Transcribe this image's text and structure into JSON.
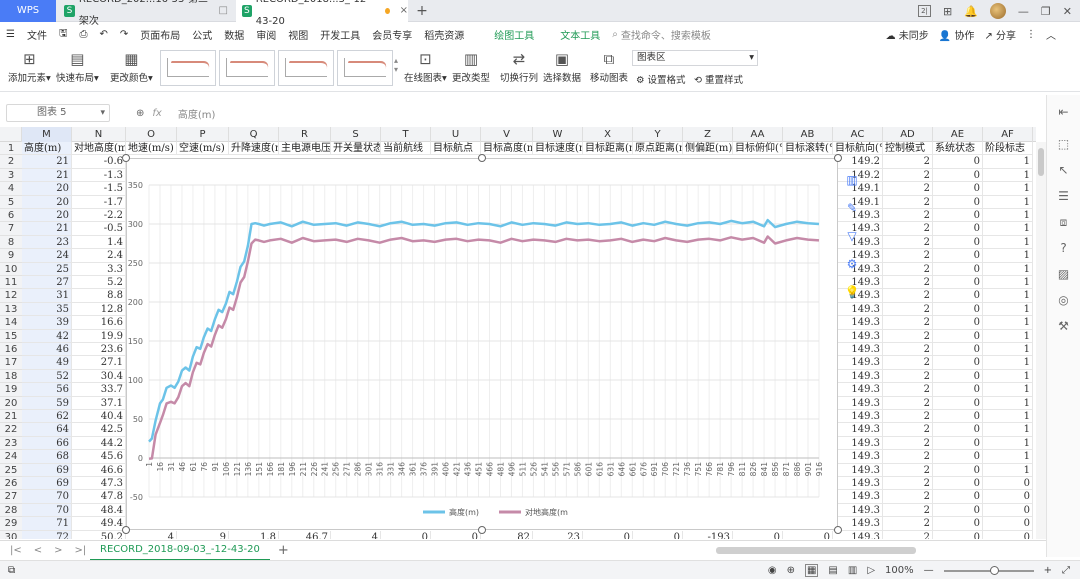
{
  "titlebar": {
    "app_tab": "WPS",
    "tabs": [
      {
        "label": "RECORD_202...16-53-第三架次"
      },
      {
        "label": "RECORD_2018...3_-12-43-20"
      }
    ],
    "new_tab": "+"
  },
  "menu": {
    "file": "文件",
    "items": [
      "页面布局",
      "公式",
      "数据",
      "审阅",
      "视图",
      "开发工具",
      "会员专享",
      "稻壳资源"
    ],
    "context_items": [
      "绘图工具",
      "文本工具"
    ],
    "search_placeholder": "查找命令、搜索模板",
    "right": [
      "未同步",
      "协作",
      "分享"
    ]
  },
  "ribbon": {
    "add_element": "添加元素",
    "quick_layout": "快速布局",
    "change_color": "更改颜色",
    "online_chart": "在线图表",
    "change_type": "更改类型",
    "switch_rowcol": "切换行列",
    "select_data": "选择数据",
    "move_chart": "移动图表",
    "chart_area": "图表区",
    "set_format": "设置格式",
    "reset_style": "重置样式"
  },
  "formula_bar": {
    "name_box": "图表 5",
    "fx": "fx",
    "value": "高度(m)"
  },
  "grid": {
    "columns": [
      "M",
      "N",
      "O",
      "P",
      "Q",
      "R",
      "S",
      "T",
      "U",
      "V",
      "W",
      "X",
      "Y",
      "Z",
      "AA",
      "AB",
      "AC",
      "AD",
      "AE",
      "AF"
    ],
    "header_row": [
      "高度(m)",
      "对地高度(m",
      "地速(m/s)",
      "空速(m/s)",
      "升降速度(m",
      "主电源电压",
      "开关量状态",
      "当前航线",
      "目标航点",
      "目标高度(m",
      "目标速度(m",
      "目标距离(m",
      "原点距离(m",
      "侧偏距(m)",
      "目标俯仰(°",
      "目标滚转(°",
      "目标航向(°",
      "控制模式",
      "系统状态",
      "阶段标志"
    ],
    "rows": [
      {
        "n": "2",
        "M": "21",
        "N": "-0.6",
        "AC": "149.2",
        "AD": "2",
        "AE": "0",
        "AF": "1"
      },
      {
        "n": "3",
        "M": "21",
        "N": "-1.3",
        "AC": "149.2",
        "AD": "2",
        "AE": "0",
        "AF": "1"
      },
      {
        "n": "4",
        "M": "20",
        "N": "-1.5",
        "AC": "149.1",
        "AD": "2",
        "AE": "0",
        "AF": "1"
      },
      {
        "n": "5",
        "M": "20",
        "N": "-1.7",
        "AC": "149.1",
        "AD": "2",
        "AE": "0",
        "AF": "1"
      },
      {
        "n": "6",
        "M": "20",
        "N": "-2.2",
        "AC": "149.3",
        "AD": "2",
        "AE": "0",
        "AF": "1"
      },
      {
        "n": "7",
        "M": "21",
        "N": "-0.5",
        "AC": "149.3",
        "AD": "2",
        "AE": "0",
        "AF": "1"
      },
      {
        "n": "8",
        "M": "23",
        "N": "1.4",
        "AC": "149.3",
        "AD": "2",
        "AE": "0",
        "AF": "1"
      },
      {
        "n": "9",
        "M": "24",
        "N": "2.4",
        "AC": "149.3",
        "AD": "2",
        "AE": "0",
        "AF": "1"
      },
      {
        "n": "10",
        "M": "25",
        "N": "3.3",
        "AC": "149.3",
        "AD": "2",
        "AE": "0",
        "AF": "1"
      },
      {
        "n": "11",
        "M": "27",
        "N": "5.2",
        "AC": "149.3",
        "AD": "2",
        "AE": "0",
        "AF": "1"
      },
      {
        "n": "12",
        "M": "31",
        "N": "8.8",
        "AC": "149.3",
        "AD": "2",
        "AE": "0",
        "AF": "1"
      },
      {
        "n": "13",
        "M": "35",
        "N": "12.8",
        "AC": "149.3",
        "AD": "2",
        "AE": "0",
        "AF": "1"
      },
      {
        "n": "14",
        "M": "39",
        "N": "16.6",
        "AC": "149.3",
        "AD": "2",
        "AE": "0",
        "AF": "1"
      },
      {
        "n": "15",
        "M": "42",
        "N": "19.9",
        "AC": "149.3",
        "AD": "2",
        "AE": "0",
        "AF": "1"
      },
      {
        "n": "16",
        "M": "46",
        "N": "23.6",
        "AC": "149.3",
        "AD": "2",
        "AE": "0",
        "AF": "1"
      },
      {
        "n": "17",
        "M": "49",
        "N": "27.1",
        "AC": "149.3",
        "AD": "2",
        "AE": "0",
        "AF": "1"
      },
      {
        "n": "18",
        "M": "52",
        "N": "30.4",
        "AC": "149.3",
        "AD": "2",
        "AE": "0",
        "AF": "1"
      },
      {
        "n": "19",
        "M": "56",
        "N": "33.7",
        "AC": "149.3",
        "AD": "2",
        "AE": "0",
        "AF": "1"
      },
      {
        "n": "20",
        "M": "59",
        "N": "37.1",
        "AC": "149.3",
        "AD": "2",
        "AE": "0",
        "AF": "1"
      },
      {
        "n": "21",
        "M": "62",
        "N": "40.4",
        "AC": "149.3",
        "AD": "2",
        "AE": "0",
        "AF": "1"
      },
      {
        "n": "22",
        "M": "64",
        "N": "42.5",
        "AC": "149.3",
        "AD": "2",
        "AE": "0",
        "AF": "1"
      },
      {
        "n": "23",
        "M": "66",
        "N": "44.2",
        "AC": "149.3",
        "AD": "2",
        "AE": "0",
        "AF": "1"
      },
      {
        "n": "24",
        "M": "68",
        "N": "45.6",
        "AC": "149.3",
        "AD": "2",
        "AE": "0",
        "AF": "1"
      },
      {
        "n": "25",
        "M": "69",
        "N": "46.6",
        "AC": "149.3",
        "AD": "2",
        "AE": "0",
        "AF": "1"
      },
      {
        "n": "26",
        "M": "69",
        "N": "47.3",
        "AC": "149.3",
        "AD": "2",
        "AE": "0",
        "AF": "0"
      },
      {
        "n": "27",
        "M": "70",
        "N": "47.8",
        "AC": "149.3",
        "AD": "2",
        "AE": "0",
        "AF": "0"
      },
      {
        "n": "28",
        "M": "70",
        "N": "48.4",
        "AC": "149.3",
        "AD": "2",
        "AE": "0",
        "AF": "0"
      },
      {
        "n": "29",
        "M": "71",
        "N": "49.4",
        "AC": "149.3",
        "AD": "2",
        "AE": "0",
        "AF": "0"
      },
      {
        "n": "30",
        "M": "72",
        "N": "50.2",
        "O": "4",
        "P": "9",
        "Q": "1.8",
        "R": "46.7",
        "S": "4",
        "T": "0",
        "U": "0",
        "V": "82",
        "W": "23",
        "X": "0",
        "Y": "0",
        "Z": "-193",
        "AA": "0",
        "AB": "0",
        "AC": "149.3",
        "AD": "2",
        "AE": "0",
        "AF": "0"
      }
    ]
  },
  "chart_data": {
    "type": "line",
    "title": "",
    "xlabel": "",
    "ylabel": "",
    "ylim": [
      -50,
      350
    ],
    "yticks": [
      -50,
      0,
      50,
      100,
      150,
      200,
      250,
      300,
      350
    ],
    "xticks": [
      "1",
      "16",
      "31",
      "46",
      "61",
      "76",
      "91",
      "106",
      "121",
      "136",
      "151",
      "166",
      "181",
      "196",
      "211",
      "226",
      "241",
      "256",
      "271",
      "286",
      "301",
      "316",
      "331",
      "346",
      "361",
      "376",
      "391",
      "406",
      "421",
      "436",
      "451",
      "466",
      "481",
      "496",
      "511",
      "526",
      "541",
      "556",
      "571",
      "586",
      "601",
      "616",
      "631",
      "646",
      "661",
      "676",
      "691",
      "706",
      "721",
      "736",
      "751",
      "766",
      "781",
      "796",
      "811",
      "826",
      "841",
      "856",
      "871",
      "886",
      "901",
      "916"
    ],
    "legend_position": "bottom",
    "grid": true,
    "x": [
      1,
      5,
      10,
      16,
      20,
      25,
      31,
      36,
      41,
      46,
      51,
      56,
      61,
      66,
      71,
      76,
      81,
      86,
      91,
      96,
      101,
      106,
      111,
      116,
      121,
      126,
      131,
      136,
      141,
      146,
      151,
      158,
      166,
      181,
      196,
      211,
      226,
      241,
      256,
      271,
      286,
      301,
      316,
      331,
      346,
      361,
      376,
      391,
      406,
      421,
      436,
      451,
      466,
      481,
      496,
      511,
      526,
      541,
      556,
      571,
      586,
      601,
      616,
      631,
      646,
      661,
      676,
      691,
      706,
      721,
      736,
      751,
      766,
      781,
      796,
      811,
      826,
      841,
      846,
      856,
      871,
      886,
      901,
      916
    ],
    "series": [
      {
        "name": "高度(m)",
        "color": "#6cc3e8",
        "values": [
          21,
          25,
          48,
          70,
          75,
          90,
          93,
          90,
          98,
          112,
          116,
          112,
          130,
          142,
          140,
          155,
          166,
          163,
          178,
          190,
          187,
          198,
          213,
          210,
          226,
          245,
          252,
          272,
          300,
          301,
          300,
          298,
          300,
          302,
          297,
          303,
          299,
          300,
          301,
          298,
          302,
          300,
          297,
          301,
          303,
          299,
          300,
          298,
          301,
          302,
          299,
          301,
          300,
          297,
          302,
          299,
          301,
          300,
          298,
          302,
          300,
          301,
          299,
          300,
          302,
          298,
          301,
          299,
          303,
          300,
          298,
          301,
          302,
          300,
          304,
          301,
          303,
          297,
          305,
          296,
          300,
          303,
          301,
          300
        ]
      },
      {
        "name": "对地高度(m",
        "color": "#c58aa8",
        "values": [
          -1,
          -0.5,
          30,
          45,
          55,
          70,
          72,
          70,
          78,
          92,
          96,
          92,
          110,
          122,
          120,
          135,
          146,
          143,
          158,
          170,
          167,
          178,
          193,
          190,
          206,
          225,
          232,
          252,
          275,
          280,
          279,
          277,
          279,
          281,
          276,
          282,
          278,
          279,
          280,
          277,
          281,
          279,
          276,
          280,
          282,
          278,
          279,
          277,
          280,
          281,
          278,
          280,
          279,
          276,
          281,
          278,
          280,
          279,
          277,
          281,
          279,
          280,
          278,
          279,
          281,
          277,
          280,
          278,
          282,
          279,
          277,
          280,
          281,
          279,
          283,
          280,
          282,
          276,
          284,
          275,
          279,
          282,
          280,
          279
        ]
      }
    ]
  },
  "sheet": {
    "tab": "RECORD_2018-09-03_-12-43-20",
    "add": "+"
  },
  "status": {
    "zoom": "100%"
  }
}
